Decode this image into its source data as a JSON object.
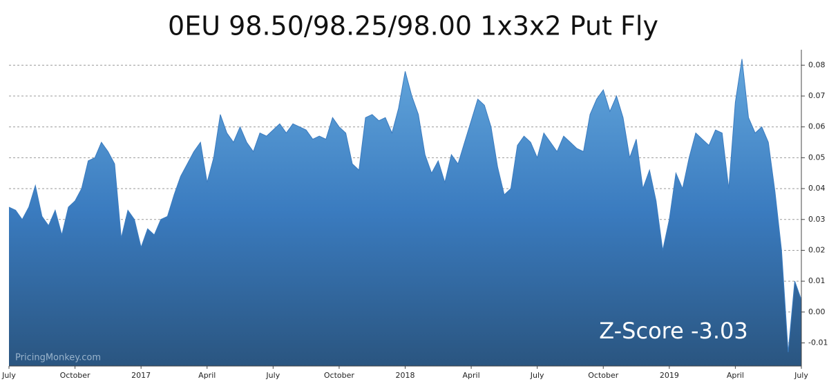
{
  "chart_data": {
    "type": "area",
    "title": "0EU 98.50/98.25/98.00 1x3x2 Put Fly",
    "annotation": "Z-Score -3.03",
    "watermark": "PricingMonkey.com",
    "color": "#3a7bbf",
    "grid": true,
    "ylim": [
      -0.0175,
      0.085
    ],
    "yticks": [
      -0.01,
      {
        "value": 0,
        "label": "0.00"
      },
      0.01,
      0.02,
      0.03,
      0.04,
      0.05,
      0.06,
      0.07,
      0.08
    ],
    "categories": [
      "July",
      null,
      null,
      null,
      null,
      null,
      null,
      null,
      null,
      null,
      "October",
      null,
      null,
      null,
      null,
      null,
      null,
      null,
      null,
      null,
      "2017",
      null,
      null,
      null,
      null,
      null,
      null,
      null,
      null,
      null,
      "April",
      null,
      null,
      null,
      null,
      null,
      null,
      null,
      null,
      null,
      "July",
      null,
      null,
      null,
      null,
      null,
      null,
      null,
      null,
      null,
      "October",
      null,
      null,
      null,
      null,
      null,
      null,
      null,
      null,
      null,
      "2018",
      null,
      null,
      null,
      null,
      null,
      null,
      null,
      null,
      null,
      "April",
      null,
      null,
      null,
      null,
      null,
      null,
      null,
      null,
      null,
      "July",
      null,
      null,
      null,
      null,
      null,
      null,
      null,
      null,
      null,
      "October",
      null,
      null,
      null,
      null,
      null,
      null,
      null,
      null,
      null,
      "2019",
      null,
      null,
      null,
      null,
      null,
      null,
      null,
      null,
      null,
      "April",
      null,
      null,
      null,
      null,
      null,
      null,
      null,
      null,
      null,
      "July"
    ],
    "values": [
      0.034,
      0.033,
      0.03,
      0.034,
      0.041,
      0.031,
      0.028,
      0.033,
      0.025,
      0.034,
      0.036,
      0.04,
      0.049,
      0.05,
      0.055,
      0.052,
      0.048,
      0.024,
      0.033,
      0.03,
      0.021,
      0.027,
      0.025,
      0.03,
      0.031,
      0.038,
      0.044,
      0.048,
      0.052,
      0.055,
      0.042,
      0.05,
      0.064,
      0.058,
      0.055,
      0.06,
      0.055,
      0.052,
      0.058,
      0.057,
      0.059,
      0.061,
      0.058,
      0.061,
      0.06,
      0.059,
      0.056,
      0.057,
      0.056,
      0.063,
      0.06,
      0.058,
      0.048,
      0.046,
      0.063,
      0.064,
      0.062,
      0.063,
      0.058,
      0.066,
      0.078,
      0.07,
      0.064,
      0.051,
      0.045,
      0.049,
      0.042,
      0.051,
      0.048,
      0.055,
      0.062,
      0.069,
      0.067,
      0.06,
      0.047,
      0.038,
      0.04,
      0.054,
      0.057,
      0.055,
      0.05,
      0.058,
      0.055,
      0.052,
      0.057,
      0.055,
      0.053,
      0.052,
      0.064,
      0.069,
      0.072,
      0.065,
      0.07,
      0.063,
      0.05,
      0.056,
      0.04,
      0.046,
      0.036,
      0.02,
      0.03,
      0.045,
      0.04,
      0.05,
      0.058,
      0.056,
      0.054,
      0.059,
      0.058,
      0.04,
      0.068,
      0.082,
      0.063,
      0.058,
      0.06,
      0.055,
      0.039,
      0.02,
      -0.013,
      0.01,
      0.004
    ]
  }
}
